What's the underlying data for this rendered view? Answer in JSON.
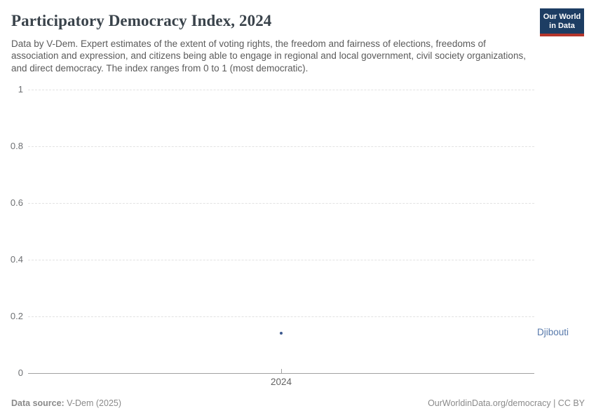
{
  "header": {
    "title": "Participatory Democracy Index, 2024",
    "subtitle": "Data by V-Dem. Expert estimates of the extent of voting rights, the freedom and fairness of elections, freedoms of association and expression, and citizens being able to engage in regional and local government, civil society organizations, and direct democracy. The index ranges from 0 to 1 (most democratic).",
    "logo": {
      "line1": "Our World",
      "line2": "in Data",
      "bg_color": "#1d3d63",
      "bar_color": "#b5352b"
    }
  },
  "chart_data": {
    "type": "scatter",
    "title": "Participatory Democracy Index, 2024",
    "x": [
      2024
    ],
    "xticks": [
      "2024"
    ],
    "series": [
      {
        "name": "Djibouti",
        "values": [
          0.14
        ],
        "color": "#3d5a8f",
        "label_color": "#5779ab"
      }
    ],
    "ylim": [
      0,
      1
    ],
    "yticks": [
      0,
      0.2,
      0.4,
      0.6,
      0.8,
      1
    ],
    "xlabel": "",
    "ylabel": "",
    "grid": "horizontal-dashed",
    "legend": "entity-label-right"
  },
  "footer": {
    "source_label": "Data source:",
    "source_value": " V-Dem (2025)",
    "attribution": "OurWorldinData.org/democracy | CC BY"
  }
}
